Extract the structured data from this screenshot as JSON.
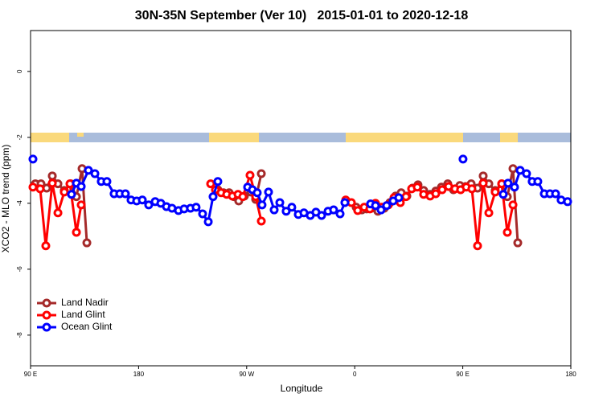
{
  "chart_data": {
    "type": "line",
    "title": "30N-35N September (Ver 10)   2015-01-01 to 2020-12-18",
    "x_label": "Longitude",
    "y_label": "XCO2 - MLO trend (ppm)",
    "xlim": [
      90,
      540
    ],
    "ylim": [
      -8.93,
      1.24
    ],
    "xticks": [
      {
        "value": 90,
        "label": "90 E"
      },
      180,
      {
        "value": 270,
        "label": "90 W"
      },
      {
        "value": 360,
        "label": "0"
      },
      {
        "value": 450,
        "label": "90 E"
      },
      {
        "value": 540,
        "label": "180"
      }
    ],
    "yticks": [
      0,
      -2,
      -4,
      -6,
      -8
    ],
    "grid": false,
    "legend": "bottom-left",
    "series": [
      {
        "name": "Land Nadir",
        "color": "#a52a2a",
        "x": [
          94.0,
          98.7,
          103.4,
          108.1,
          112.8,
          118.1,
          123.5,
          128.2,
          132.9,
          136.9,
          null,
          246.0,
          250.7,
          255.4,
          259.4,
          263.4,
          268.1,
          273.5,
          277.5,
          282.2,
          null,
          361.2,
          365.9,
          369.9,
          373.9,
          379.3,
          384.6,
          389.3,
          394.0,
          398.7,
          403.4,
          408.1,
          412.7,
          417.4,
          422.8,
          427.5,
          432.2,
          437.5,
          442.2,
          447.6,
          452.3,
          457.0,
          462.3,
          467.0,
          471.7,
          477.0,
          482.4,
          487.1,
          491.8,
          495.8
        ],
        "values": [
          -3.41,
          -3.41,
          -3.54,
          -3.17,
          -3.41,
          -3.61,
          -3.41,
          -3.8,
          -2.95,
          -5.2,
          null,
          -3.59,
          -3.68,
          -3.68,
          -3.8,
          -3.93,
          -3.78,
          -3.66,
          -3.88,
          -3.1,
          null,
          -4.12,
          -4.2,
          -4.17,
          -4.15,
          -4.24,
          -4.15,
          -3.98,
          -3.78,
          -3.68,
          -3.78,
          -3.54,
          -3.44,
          -3.61,
          -3.73,
          -3.63,
          -3.51,
          -3.41,
          -3.59,
          -3.46,
          -3.49,
          -3.41,
          -3.54,
          -3.17,
          -3.41,
          -3.61,
          -3.41,
          -3.8,
          -2.95,
          -5.2
        ]
      },
      {
        "name": "Land Glint",
        "color": "#ff0000",
        "x": [
          92.0,
          98.0,
          102.7,
          108.1,
          112.8,
          118.1,
          122.8,
          128.2,
          132.2,
          null,
          240.0,
          244.0,
          248.7,
          253.4,
          258.1,
          262.8,
          266.8,
          272.8,
          277.5,
          282.2,
          null,
          352.5,
          357.2,
          362.5,
          367.9,
          372.6,
          377.3,
          382.6,
          388.0,
          392.7,
          398.0,
          402.7,
          407.4,
          412.1,
          417.4,
          422.8,
          427.5,
          432.8,
          438.2,
          443.5,
          448.2,
          452.9,
          457.6,
          462.3,
          467.0,
          471.7,
          477.0,
          482.4,
          487.1,
          491.8
        ],
        "values": [
          -3.51,
          -3.56,
          -5.29,
          -3.39,
          -4.29,
          -3.66,
          -3.41,
          -4.88,
          -4.05,
          null,
          -3.41,
          -3.59,
          -3.68,
          -3.73,
          -3.78,
          -3.73,
          -3.8,
          -3.15,
          -3.8,
          -4.54,
          null,
          -3.9,
          -3.98,
          -4.22,
          -4.12,
          -4.17,
          -4.0,
          -4.12,
          -4.05,
          -3.83,
          -3.98,
          -3.8,
          -3.56,
          -3.51,
          -3.73,
          -3.78,
          -3.71,
          -3.59,
          -3.49,
          -3.56,
          -3.59,
          -3.51,
          -3.56,
          -5.29,
          -3.39,
          -4.29,
          -3.66,
          -3.41,
          -4.88,
          -4.05
        ]
      },
      {
        "name": "Ocean Glint",
        "color": "#0000ff",
        "x": [
          92.0,
          null,
          124.1,
          128.2,
          132.2,
          138.2,
          143.6,
          148.9,
          153.6,
          159.6,
          164.3,
          169.0,
          173.7,
          178.4,
          183.1,
          188.4,
          193.8,
          198.5,
          203.2,
          207.8,
          213.2,
          217.9,
          223.2,
          227.9,
          233.3,
          238.0,
          242.0,
          246.0,
          null,
          270.8,
          274.8,
          278.8,
          282.8,
          288.2,
          292.9,
          297.6,
          302.9,
          307.6,
          313.0,
          317.7,
          323.0,
          327.7,
          332.4,
          337.8,
          342.4,
          347.8,
          351.8,
          null,
          373.2,
          377.3,
          381.9,
          386.6,
          392.0,
          396.7,
          null,
          450.2,
          null,
          483.7,
          487.7,
          493.1,
          497.8,
          503.1,
          507.8,
          512.5,
          517.9,
          522.6,
          527.3,
          531.9,
          537.3
        ],
        "values": [
          -2.66,
          null,
          -3.73,
          -3.39,
          -3.49,
          -3.0,
          -3.1,
          -3.34,
          -3.34,
          -3.71,
          -3.71,
          -3.71,
          -3.9,
          -3.93,
          -3.9,
          -4.05,
          -3.95,
          -4.0,
          -4.1,
          -4.15,
          -4.22,
          -4.17,
          -4.15,
          -4.12,
          -4.32,
          -4.56,
          -3.8,
          -3.34,
          null,
          -3.51,
          -3.59,
          -3.68,
          -4.05,
          -3.66,
          -4.2,
          -3.98,
          -4.24,
          -4.12,
          -4.34,
          -4.29,
          -4.37,
          -4.27,
          -4.37,
          -4.24,
          -4.2,
          -4.32,
          -3.98,
          null,
          -4.02,
          -4.07,
          -4.2,
          -4.07,
          -3.93,
          -3.83,
          null,
          -2.66,
          null,
          -3.73,
          -3.39,
          -3.51,
          -3.0,
          -3.1,
          -3.34,
          -3.34,
          -3.71,
          -3.71,
          -3.71,
          -3.9,
          -3.95
        ]
      }
    ]
  }
}
